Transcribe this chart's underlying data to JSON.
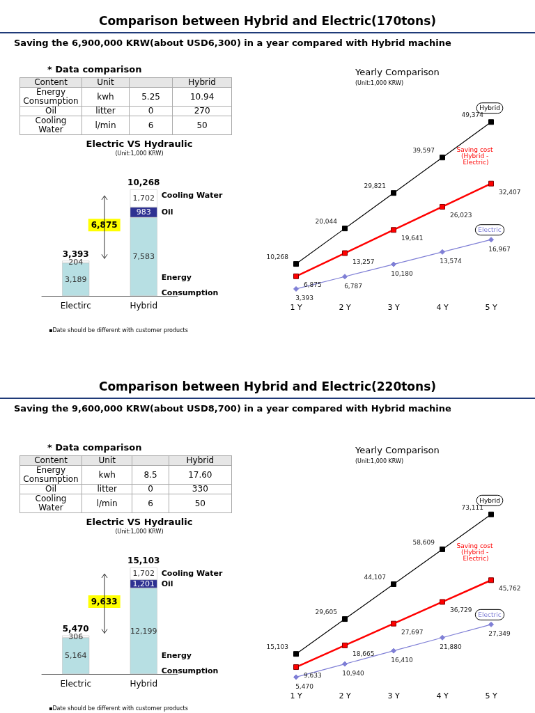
{
  "chart_data": [
    {
      "type": "other",
      "title": "Comparison between Hybrid and Electric(170tons)",
      "subtitle": "Saving the 6,900,000 KRW(about USD6,300) in a year compared with Hybrid machine"
    },
    {
      "type": "other",
      "title": "* Data comparison",
      "categories": [
        "Content",
        "Unit",
        null,
        "Hybrid"
      ],
      "y_categories": [
        "Energy Consumption",
        "Oil",
        "Cooling Water"
      ],
      "annotations": [
        "kwh",
        "5.25",
        "10.94",
        "litter",
        "0",
        "270",
        "l/min",
        "6",
        "50"
      ]
    },
    {
      "type": "bar",
      "title": "Electric VS Hydraulic",
      "subtitle": "(Unit:1,000 KRW)",
      "categories": [
        "Electirc",
        "Hybrid"
      ],
      "stacked": true,
      "series": [
        {
          "name": "Energy Consumption",
          "color": "#b7dfe3",
          "values": [
            3189,
            7583
          ],
          "value_labels": [
            "3,189",
            "7,583"
          ]
        },
        {
          "name": "Oil",
          "color": "#2e3192",
          "values": [
            null,
            983
          ],
          "value_labels": [
            null,
            "983"
          ]
        },
        {
          "name": "Cooling Water",
          "color": "#ffffff",
          "values": [
            204,
            1702
          ],
          "value_labels": [
            "204",
            "1,702"
          ]
        }
      ],
      "totals": [
        "3,393",
        "10,268"
      ],
      "annotations": [
        "6,875",
        "▪Date should be different with customer products"
      ]
    },
    {
      "type": "line",
      "title": "Yearly Comparison",
      "subtitle": "(Unit:1,000 KRW)",
      "categories": [
        "1 Y",
        "2 Y",
        "3 Y",
        "4 Y",
        "5 Y"
      ],
      "series": [
        {
          "name": "Hybrid",
          "color": "#000000",
          "marker": "square",
          "values": [
            10268,
            20044,
            29821,
            39597,
            49374
          ],
          "value_labels": [
            "10,268",
            "20,044",
            "29,821",
            "39,597",
            "49,374"
          ]
        },
        {
          "name": "Saving cost (Hybrid - Electric)",
          "color": "#ff0000",
          "marker": "square",
          "values": [
            6875,
            13257,
            19641,
            26023,
            32407
          ],
          "value_labels": [
            "6,875",
            "13,257",
            "19,641",
            "26,023",
            "32,407"
          ]
        },
        {
          "name": "Electric",
          "color": "#7f7fd6",
          "marker": "diamond",
          "values": [
            3393,
            6787,
            10180,
            13574,
            16967
          ],
          "value_labels": [
            "3,393",
            "6,787",
            "10,180",
            "13,574",
            "16,967"
          ]
        }
      ]
    },
    {
      "type": "other",
      "title": "Comparison between Hybrid and Electric(220tons)",
      "subtitle": "Saving the 9,600,000 KRW(about USD8,700) in a year compared with Hybrid machine"
    },
    {
      "type": "other",
      "title": "* Data comparison",
      "categories": [
        "Content",
        "Unit",
        null,
        "Hybrid"
      ],
      "y_categories": [
        "Energy Consumption",
        "Oil",
        "Cooling Water"
      ],
      "annotations": [
        "kwh",
        "8.5",
        "17.60",
        "litter",
        "0",
        "330",
        "l/min",
        "6",
        "50"
      ]
    },
    {
      "type": "bar",
      "title": "Electric VS Hydraulic",
      "subtitle": "(Unit:1,000 KRW)",
      "categories": [
        "Electric",
        "Hybrid"
      ],
      "stacked": true,
      "series": [
        {
          "name": "Energy Consumption",
          "color": "#b7dfe3",
          "values": [
            5164,
            12199
          ],
          "value_labels": [
            "5,164",
            "12,199"
          ]
        },
        {
          "name": "Oil",
          "color": "#2e3192",
          "values": [
            null,
            1201
          ],
          "value_labels": [
            null,
            "1,201"
          ]
        },
        {
          "name": "Cooling Water",
          "color": "#ffffff",
          "values": [
            306,
            1702
          ],
          "value_labels": [
            "306",
            "1,702"
          ]
        }
      ],
      "totals": [
        "5,470",
        "15,103"
      ],
      "annotations": [
        "9,633",
        "▪Date should be different with customer products"
      ]
    },
    {
      "type": "line",
      "title": "Yearly Comparison",
      "subtitle": "(Unit:1,000 KRW)",
      "categories": [
        "1 Y",
        "2 Y",
        "3 Y",
        "4 Y",
        "5 Y"
      ],
      "series": [
        {
          "name": "Hybrid",
          "color": "#000000",
          "marker": "square",
          "values": [
            15103,
            29605,
            44107,
            58609,
            73111
          ],
          "value_labels": [
            "15,103",
            "29,605",
            "44,107",
            "58,609",
            "73,111"
          ]
        },
        {
          "name": "Saving cost (Hybrid - Electric)",
          "color": "#ff0000",
          "marker": "square",
          "values": [
            9633,
            18665,
            27697,
            36729,
            45762
          ],
          "value_labels": [
            "9,633",
            "18,665",
            "27,697",
            "36,729",
            "45,762"
          ]
        },
        {
          "name": "Electric",
          "color": "#7f7fd6",
          "marker": "diamond",
          "values": [
            5470,
            10940,
            16410,
            21880,
            27349
          ],
          "value_labels": [
            "5,470",
            "10,940",
            "16,410",
            "21,880",
            "27,349"
          ]
        }
      ]
    }
  ]
}
